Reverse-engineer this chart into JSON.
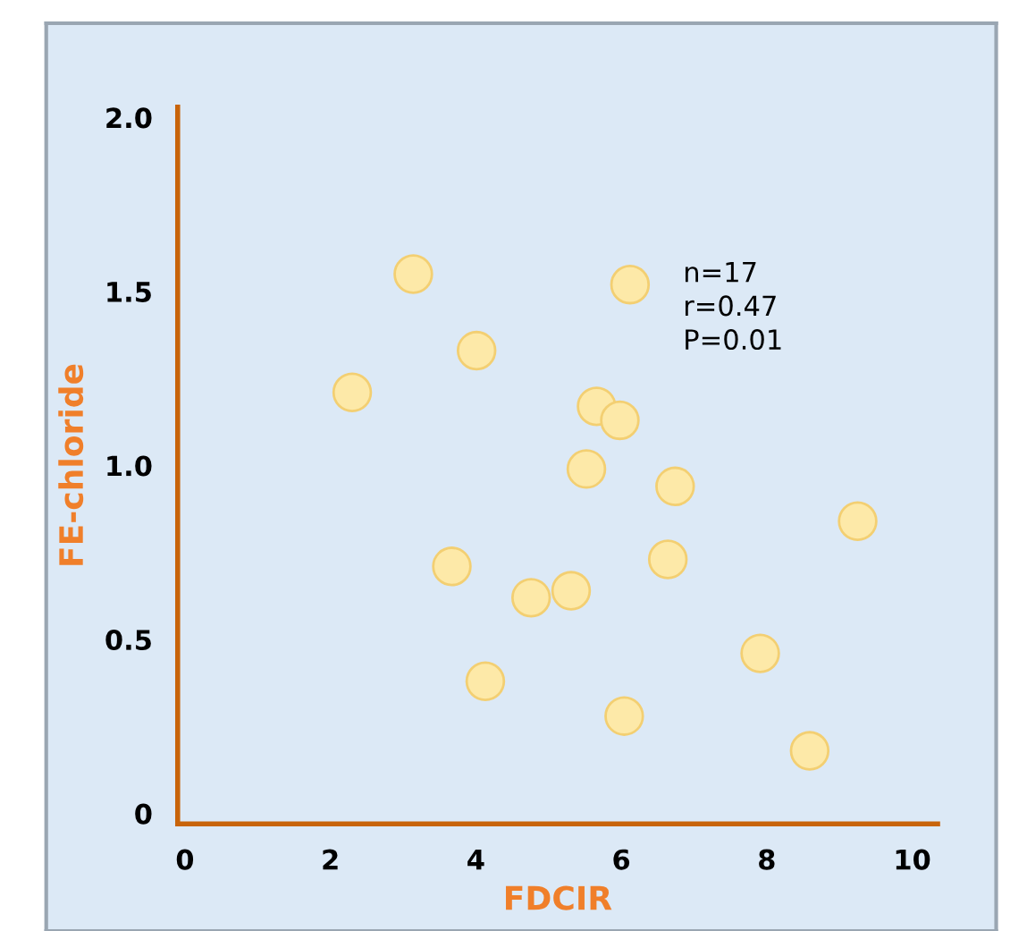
{
  "chart_data": {
    "type": "scatter",
    "xlabel": "FDCIR",
    "ylabel": "FE-chloride",
    "annotations": [
      "n=17\nr=0.47\nP=0.01"
    ],
    "x": [
      3.14,
      6.12,
      4.01,
      2.3,
      5.66,
      5.98,
      5.52,
      6.74,
      9.25,
      3.67,
      6.64,
      4.76,
      5.31,
      7.91,
      4.13,
      6.04,
      8.59
    ],
    "values": [
      1.55,
      1.52,
      1.33,
      1.21,
      1.17,
      1.13,
      0.99,
      0.94,
      0.84,
      0.71,
      0.73,
      0.62,
      0.64,
      0.46,
      0.38,
      0.28,
      0.18
    ],
    "color": "#fde9a8",
    "marker": "circle",
    "xlim": [
      -0.1,
      10.35
    ],
    "ylim": [
      -0.03,
      2.03
    ],
    "xticks": [
      0,
      2,
      4,
      6,
      8,
      10
    ],
    "yticks": [
      0,
      0.5,
      {
        "value": 1,
        "label": "1.0"
      },
      1.5,
      {
        "value": 2,
        "label": "2.0"
      }
    ],
    "grid": false,
    "legend": false
  }
}
